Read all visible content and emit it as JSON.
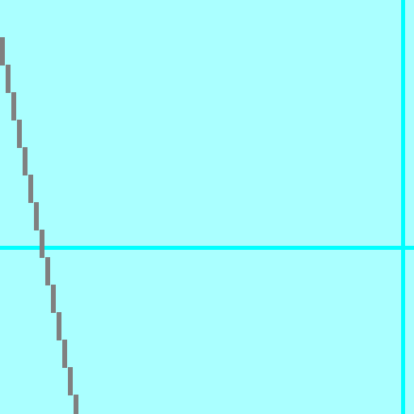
{
  "canvas": {
    "background_color": "#aaffff",
    "guide_color": "#00ffff",
    "stroke_color": "#808080"
  },
  "guides": [
    {
      "name": "vertical-guide-line",
      "orientation": "vertical"
    },
    {
      "name": "horizontal-guide-line",
      "orientation": "horizontal"
    }
  ],
  "stroke": {
    "name": "diagonal-stroke",
    "style": "stepped-pixel-line"
  }
}
